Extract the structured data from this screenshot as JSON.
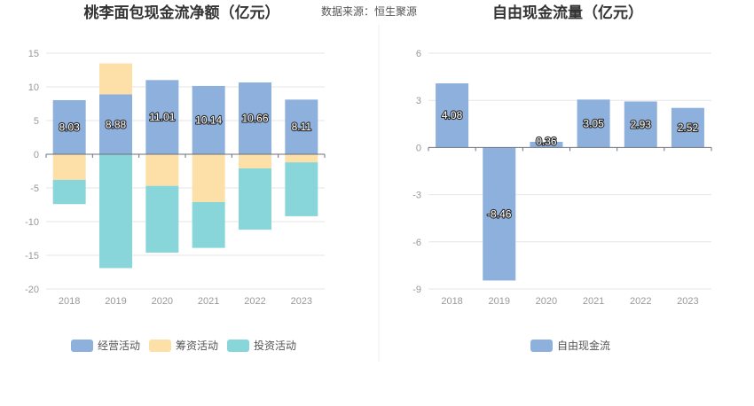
{
  "source_text": "数据来源：恒生聚源",
  "chart_data": [
    {
      "type": "bar",
      "stacked": true,
      "title": "桃李面包现金流净额（亿元）",
      "categories": [
        "2018",
        "2019",
        "2020",
        "2021",
        "2022",
        "2023"
      ],
      "ylim": [
        -20,
        15
      ],
      "yticks": [
        15,
        10,
        5,
        0,
        -5,
        -10,
        -15,
        -20
      ],
      "grid": true,
      "legend_position": "bottom",
      "series": [
        {
          "name": "经营活动",
          "color": "#8eb0dc",
          "values": [
            8.03,
            8.88,
            11.01,
            10.14,
            10.66,
            8.11
          ],
          "labels": [
            "8.03",
            "8.88",
            "11.01",
            "10.14",
            "10.66",
            "8.11"
          ]
        },
        {
          "name": "筹资活动",
          "color": "#fddfa8",
          "values": [
            -3.8,
            4.6,
            -4.7,
            -7.1,
            -2.1,
            -1.2
          ]
        },
        {
          "name": "投资活动",
          "color": "#88d6d9",
          "values": [
            -3.6,
            -16.9,
            -9.9,
            -6.8,
            -9.1,
            -8.0
          ]
        }
      ]
    },
    {
      "type": "bar",
      "title": "自由现金流量（亿元）",
      "categories": [
        "2018",
        "2019",
        "2020",
        "2021",
        "2022",
        "2023"
      ],
      "ylim": [
        -9,
        6
      ],
      "yticks": [
        6,
        3,
        0,
        -3,
        -6,
        -9
      ],
      "grid": true,
      "legend_position": "bottom",
      "series": [
        {
          "name": "自由现金流",
          "color": "#8eb0dc",
          "values": [
            4.08,
            -8.46,
            0.36,
            3.05,
            2.93,
            2.52
          ],
          "labels": [
            "4.08",
            "-8.46",
            "0.36",
            "3.05",
            "2.93",
            "2.52"
          ]
        }
      ]
    }
  ]
}
